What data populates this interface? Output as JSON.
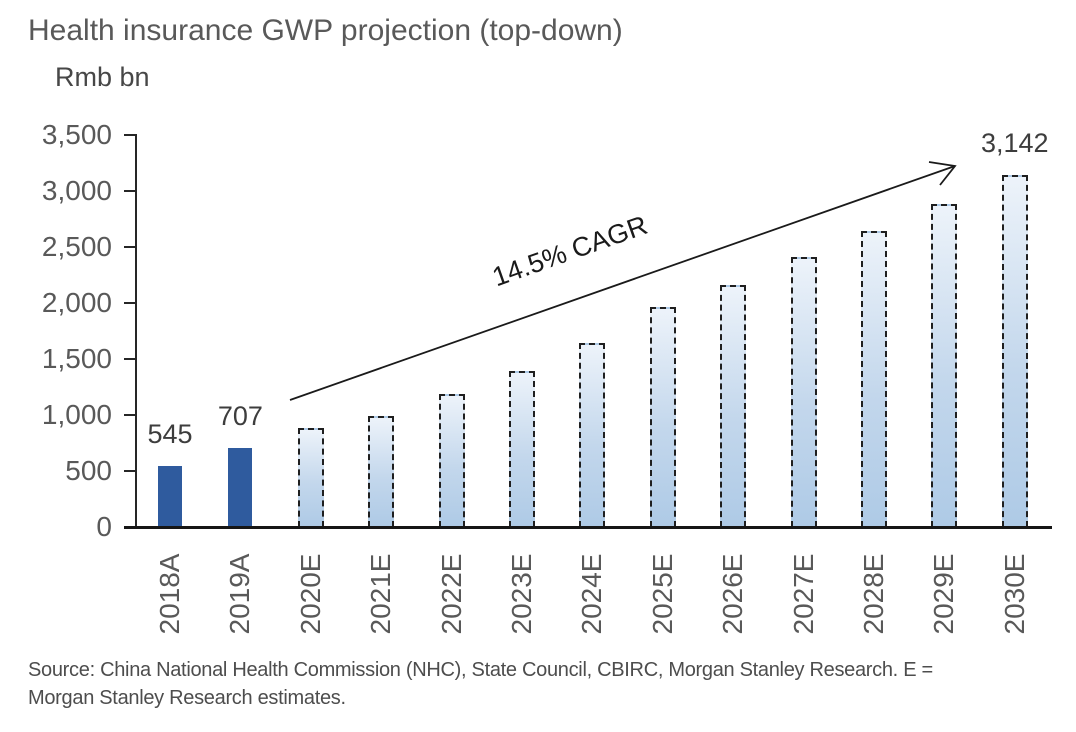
{
  "title": "Health insurance GWP projection (top-down)",
  "colors": {
    "actual_bar": "#2F5B9E",
    "projected_bar_top": "#EDF3FA",
    "projected_bar_bottom": "#AECAE6",
    "axis": "#262626",
    "text_gray": "#595959"
  },
  "chart_data": {
    "type": "bar",
    "title": "Health insurance GWP projection (top-down)",
    "y_axis_title": "Rmb bn",
    "categories": [
      "2018A",
      "2019A",
      "2020E",
      "2021E",
      "2022E",
      "2023E",
      "2024E",
      "2025E",
      "2026E",
      "2027E",
      "2028E",
      "2029E",
      "2030E"
    ],
    "values": [
      545,
      707,
      880,
      990,
      1185,
      1390,
      1645,
      1965,
      2160,
      2410,
      2640,
      2880,
      3142
    ],
    "is_estimate": [
      false,
      false,
      true,
      true,
      true,
      true,
      true,
      true,
      true,
      true,
      true,
      true,
      true
    ],
    "data_labels": [
      "545",
      "707",
      null,
      null,
      null,
      null,
      null,
      null,
      null,
      null,
      null,
      null,
      "3,142"
    ],
    "annotation": "14.5% CAGR",
    "y_ticks": [
      "0",
      "500",
      "1,000",
      "1,500",
      "2,000",
      "2,500",
      "3,000",
      "3,500"
    ],
    "ylim": [
      0,
      3500
    ],
    "gridlines": false,
    "legend": "none",
    "bar_styles": {
      "actual": "solid navy",
      "estimate": "dashed outline with light blue gradient"
    }
  },
  "footer": {
    "source_line1": "Source: China National Health Commission (NHC), State Council, CBIRC, Morgan Stanley Research. E =",
    "source_line2": "Morgan Stanley Research estimates."
  }
}
